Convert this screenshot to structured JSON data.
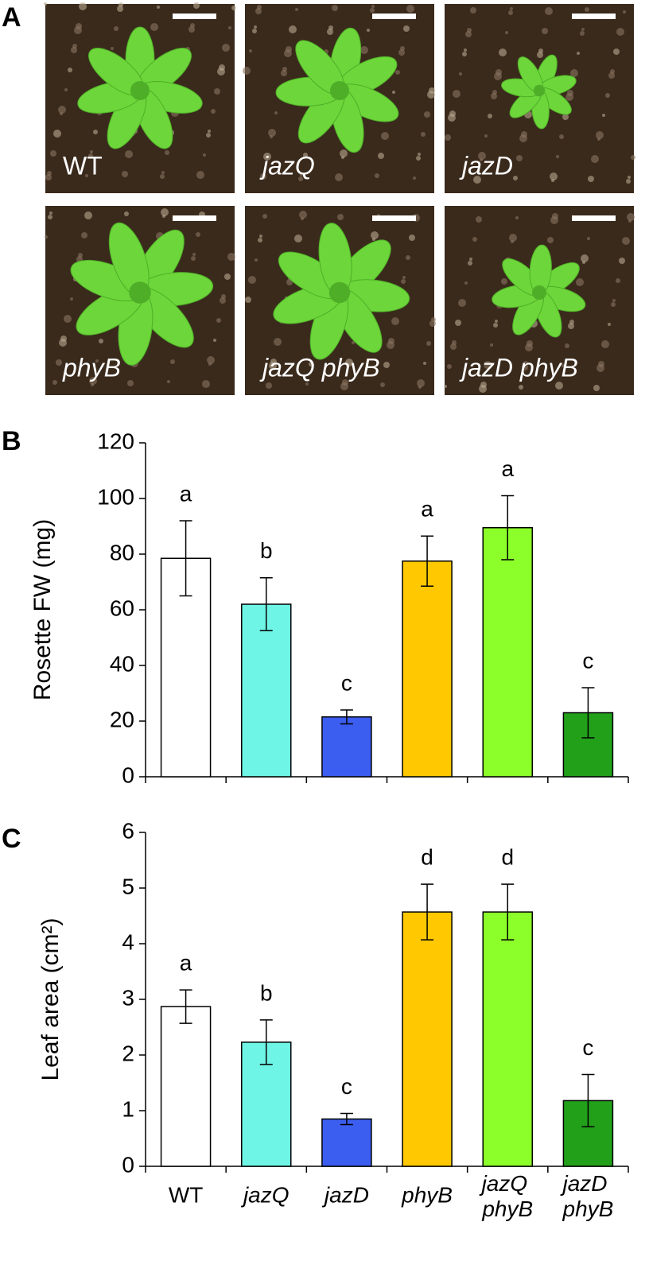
{
  "panel_labels": [
    "A",
    "B",
    "C"
  ],
  "photos": {
    "labels": [
      "WT",
      "jazQ",
      "jazD",
      "phyB",
      "jazQ phyB",
      "jazD phyB"
    ]
  },
  "chart_data": [
    {
      "type": "bar",
      "ylabel": "Rosette FW (mg)",
      "values": [
        78.5,
        62,
        21.5,
        77.5,
        89.5,
        23
      ],
      "errors": [
        13.5,
        9.5,
        2.5,
        9,
        11.5,
        9
      ],
      "annotations": [
        "a",
        "b",
        "c",
        "a",
        "a",
        "c"
      ],
      "colors": [
        "#ffffff",
        "#6ff5e6",
        "#3b5ef0",
        "#ffc800",
        "#8cff2a",
        "#22a01a"
      ],
      "ylim": [
        0,
        120
      ],
      "yticks": [
        0,
        20,
        40,
        60,
        80,
        100,
        120
      ]
    },
    {
      "type": "bar",
      "ylabel": "Leaf area (cm²)",
      "categories": [
        "WT",
        "jazQ",
        "jazD",
        "phyB",
        "jazQ phyB",
        "jazD phyB"
      ],
      "values": [
        2.87,
        2.23,
        0.85,
        4.57,
        4.57,
        1.18
      ],
      "errors": [
        0.3,
        0.4,
        0.1,
        0.5,
        0.5,
        0.47
      ],
      "annotations": [
        "a",
        "b",
        "c",
        "d",
        "d",
        "c"
      ],
      "colors": [
        "#ffffff",
        "#6ff5e6",
        "#3b5ef0",
        "#ffc800",
        "#8cff2a",
        "#22a01a"
      ],
      "ylim": [
        0,
        6
      ],
      "yticks": [
        0,
        1,
        2,
        3,
        4,
        5,
        6
      ]
    }
  ]
}
